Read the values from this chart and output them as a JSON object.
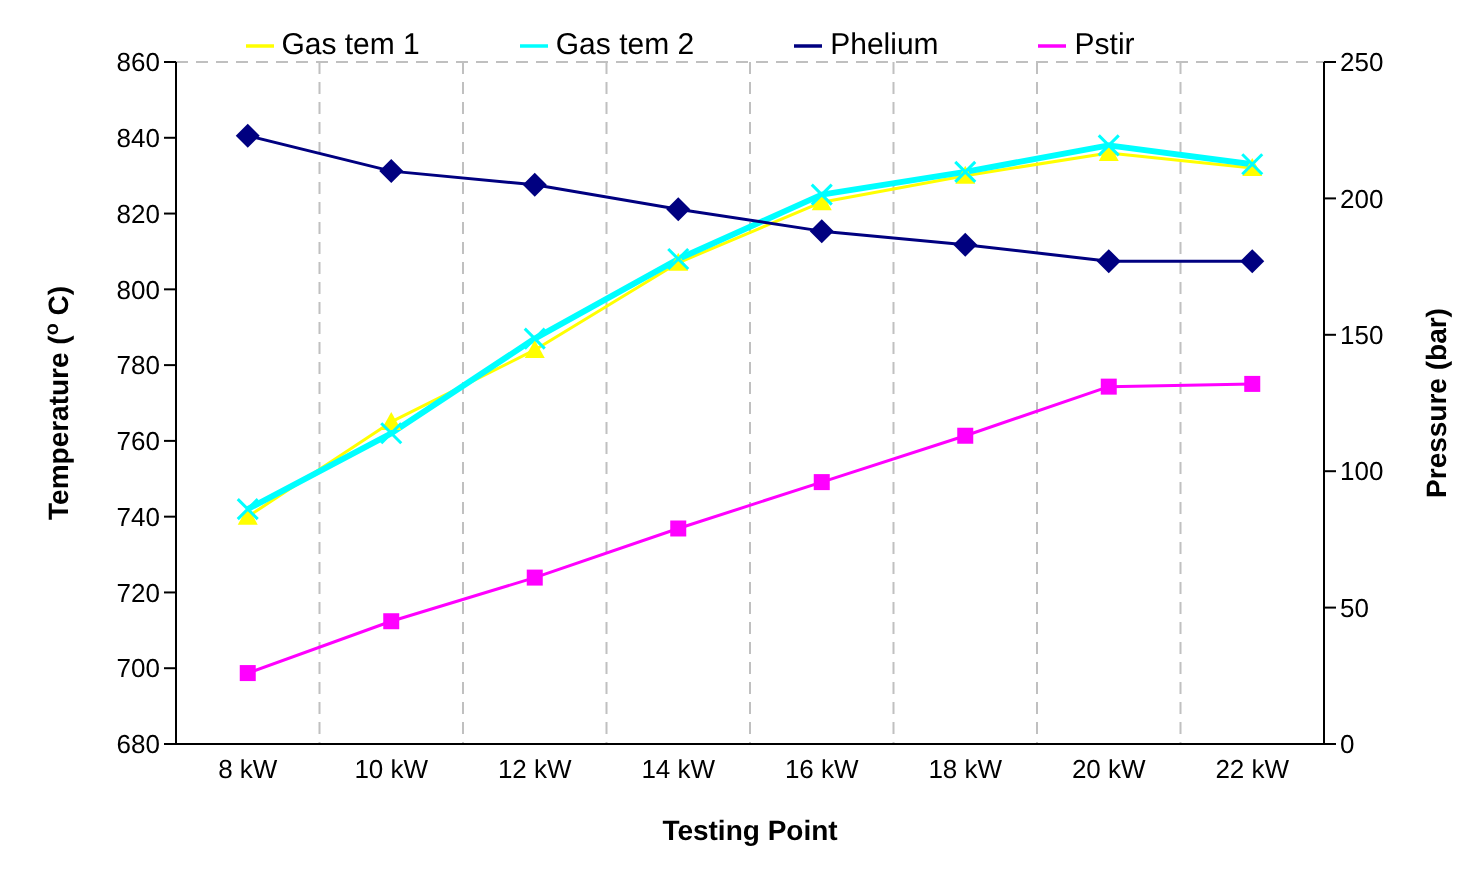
{
  "chart_data": {
    "type": "line",
    "xlabel": "Testing Point",
    "ylabel": "Temperature ($^{o}$ C)",
    "y2label": "Pressure (bar)",
    "categories": [
      "8 kW",
      "10 kW",
      "12 kW",
      "14 kW",
      "16 kW",
      "18 kW",
      "20 kW",
      "22 kW"
    ],
    "series": [
      {
        "name": "Gas tem 1",
        "color": "#ffff00",
        "marker": "triangle",
        "values": [
          740,
          765,
          784,
          807,
          823,
          830,
          836,
          832
        ]
      },
      {
        "name": "Gas tem 2",
        "color": "#00ffff",
        "marker": "cross",
        "values": [
          742,
          762,
          787,
          808,
          825,
          831,
          838,
          833
        ]
      },
      {
        "name": "Phelium",
        "color": "#000080",
        "marker": "diamond",
        "axis": "y2",
        "values": [
          223,
          210,
          205,
          196,
          188,
          183,
          177,
          177
        ]
      },
      {
        "name": "Pstir",
        "color": "#ff00ff",
        "marker": "square",
        "axis": "y2",
        "values": [
          26,
          45,
          61,
          79,
          96,
          113,
          131,
          132
        ]
      }
    ],
    "ylim": [
      680,
      860
    ],
    "yticks": [
      680,
      700,
      720,
      740,
      760,
      780,
      800,
      820,
      840,
      860
    ],
    "y2lim": [
      0,
      250
    ],
    "y2ticks": [
      0,
      50,
      100,
      150,
      200,
      250
    ],
    "grid": true,
    "legend": "top"
  }
}
